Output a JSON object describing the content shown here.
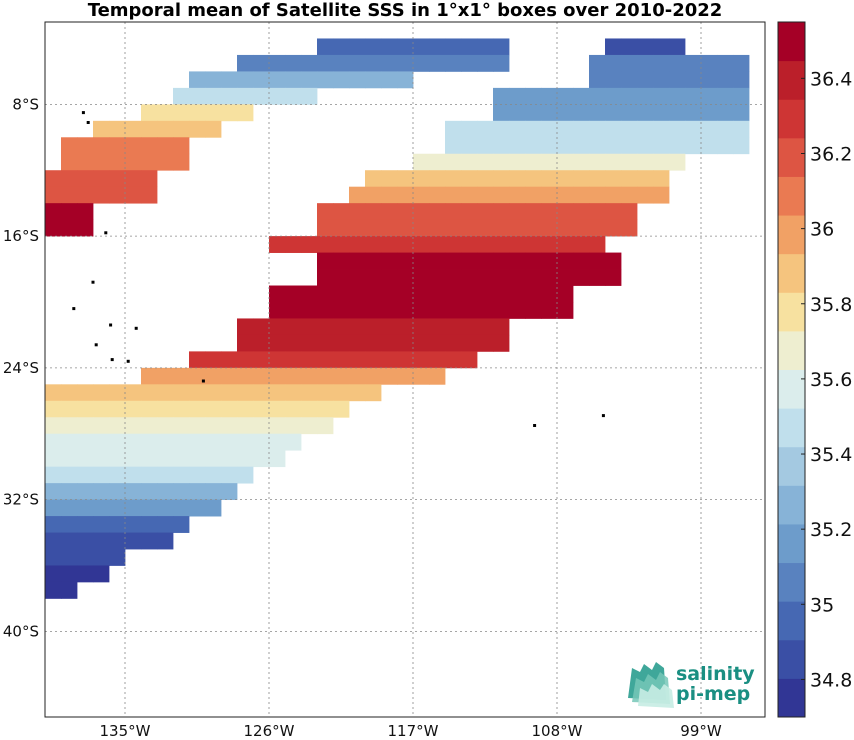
{
  "map": {
    "title": "Temporal mean of Satellite SSS in 1°x1° boxes over 2010-2022",
    "lat_labels": [
      {
        "label": "8°S",
        "value": -8
      },
      {
        "label": "16°S",
        "value": -16
      },
      {
        "label": "24°S",
        "value": -24
      },
      {
        "label": "32°S",
        "value": -32
      },
      {
        "label": "40°S",
        "value": -40
      }
    ],
    "lon_labels": [
      {
        "label": "135°W",
        "value": -135
      },
      {
        "label": "126°W",
        "value": -126
      },
      {
        "label": "117°W",
        "value": -117
      },
      {
        "label": "108°W",
        "value": -108
      },
      {
        "label": "99°W",
        "value": -99
      }
    ],
    "extent": {
      "lon_min": -140,
      "lon_max": -95,
      "lat_min": -45.2,
      "lat_max": -3.0
    },
    "grid": true
  },
  "colorbar": {
    "min": 34.7,
    "max": 36.55,
    "ticks": [
      "34.8",
      "35",
      "35.2",
      "35.4",
      "35.6",
      "35.8",
      "36",
      "36.2",
      "36.4"
    ],
    "colors": [
      "#313695",
      "#3a4fa5",
      "#4668b3",
      "#5982bf",
      "#6d9ccb",
      "#87b3d7",
      "#a4c9e1",
      "#c0dfec",
      "#dbedec",
      "#eeeed0",
      "#f7e1a0",
      "#f5c47e",
      "#f1a165",
      "#ea7a52",
      "#dd5543",
      "#ce3534",
      "#bb1f2a",
      "#a50026"
    ],
    "orientation": "vertical"
  },
  "logo": {
    "line1": "salinity",
    "line2": "pi-mep"
  },
  "chart_data": {
    "type": "heatmap",
    "title": "Temporal mean of Satellite SSS in 1°x1° boxes over 2010-2022",
    "x_axis": "longitude",
    "y_axis": "latitude",
    "cell_size_deg": 1,
    "vmin": 34.7,
    "vmax": 36.55,
    "bands": [
      {
        "lat_top": -4,
        "lat_bottom": -5,
        "lon_from": -123,
        "lon_to": -111,
        "value": 35.0
      },
      {
        "lat_top": -5,
        "lat_bottom": -6,
        "lon_from": -128,
        "lon_to": -111,
        "value": 35.1
      },
      {
        "lat_top": -6,
        "lat_bottom": -7,
        "lon_from": -131,
        "lon_to": -117,
        "value": 35.3
      },
      {
        "lat_top": -7,
        "lat_bottom": -8,
        "lon_from": -132,
        "lon_to": -123,
        "value": 35.45
      },
      {
        "lat_top": -8,
        "lat_bottom": -9,
        "lon_from": -134,
        "lon_to": -127,
        "value": 35.75
      },
      {
        "lat_top": -9,
        "lat_bottom": -10,
        "lon_from": -137,
        "lon_to": -129,
        "value": 35.85
      },
      {
        "lat_top": -10,
        "lat_bottom": -12,
        "lon_from": -139,
        "lon_to": -131,
        "value": 36.05
      },
      {
        "lat_top": -12,
        "lat_bottom": -14,
        "lon_from": -140,
        "lon_to": -133,
        "value": 36.2
      },
      {
        "lat_top": -14,
        "lat_bottom": -16,
        "lon_from": -140,
        "lon_to": -137,
        "value": 36.45
      },
      {
        "lat_top": -4,
        "lat_bottom": -5,
        "lon_from": -105,
        "lon_to": -100,
        "value": 34.9
      },
      {
        "lat_top": -5,
        "lat_bottom": -7,
        "lon_from": -106,
        "lon_to": -96,
        "value": 35.1
      },
      {
        "lat_top": -7,
        "lat_bottom": -9,
        "lon_from": -112,
        "lon_to": -96,
        "value": 35.2
      },
      {
        "lat_top": -9,
        "lat_bottom": -11,
        "lon_from": -115,
        "lon_to": -96,
        "value": 35.45
      },
      {
        "lat_top": -11,
        "lat_bottom": -12,
        "lon_from": -117,
        "lon_to": -100,
        "value": 35.7
      },
      {
        "lat_top": -12,
        "lat_bottom": -13,
        "lon_from": -120,
        "lon_to": -101,
        "value": 35.85
      },
      {
        "lat_top": -13,
        "lat_bottom": -14,
        "lon_from": -121,
        "lon_to": -101,
        "value": 36.0
      },
      {
        "lat_top": -14,
        "lat_bottom": -16,
        "lon_from": -123,
        "lon_to": -103,
        "value": 36.2
      },
      {
        "lat_top": -16,
        "lat_bottom": -17,
        "lon_from": -126,
        "lon_to": -105,
        "value": 36.3
      },
      {
        "lat_top": -17,
        "lat_bottom": -19,
        "lon_from": -123,
        "lon_to": -104,
        "value": 36.45
      },
      {
        "lat_top": -19,
        "lat_bottom": -21,
        "lon_from": -126,
        "lon_to": -107,
        "value": 36.5
      },
      {
        "lat_top": -21,
        "lat_bottom": -23,
        "lon_from": -128,
        "lon_to": -111,
        "value": 36.4
      },
      {
        "lat_top": -23,
        "lat_bottom": -24,
        "lon_from": -131,
        "lon_to": -113,
        "value": 36.3
      },
      {
        "lat_top": -24,
        "lat_bottom": -25,
        "lon_from": -134,
        "lon_to": -115,
        "value": 36.0
      },
      {
        "lat_top": -25,
        "lat_bottom": -26,
        "lon_from": -140,
        "lon_to": -119,
        "value": 35.9
      },
      {
        "lat_top": -26,
        "lat_bottom": -27,
        "lon_from": -140,
        "lon_to": -121,
        "value": 35.8
      },
      {
        "lat_top": -27,
        "lat_bottom": -28,
        "lon_from": -140,
        "lon_to": -122,
        "value": 35.7
      },
      {
        "lat_top": -28,
        "lat_bottom": -29,
        "lon_from": -140,
        "lon_to": -124,
        "value": 35.6
      },
      {
        "lat_top": -29,
        "lat_bottom": -30,
        "lon_from": -140,
        "lon_to": -125,
        "value": 35.55
      },
      {
        "lat_top": -30,
        "lat_bottom": -31,
        "lon_from": -140,
        "lon_to": -127,
        "value": 35.45
      },
      {
        "lat_top": -31,
        "lat_bottom": -32,
        "lon_from": -140,
        "lon_to": -128,
        "value": 35.3
      },
      {
        "lat_top": -32,
        "lat_bottom": -33,
        "lon_from": -140,
        "lon_to": -129,
        "value": 35.15
      },
      {
        "lat_top": -33,
        "lat_bottom": -34,
        "lon_from": -140,
        "lon_to": -131,
        "value": 35.0
      },
      {
        "lat_top": -34,
        "lat_bottom": -35,
        "lon_from": -140,
        "lon_to": -132,
        "value": 34.9
      },
      {
        "lat_top": -35,
        "lat_bottom": -36,
        "lon_from": -140,
        "lon_to": -135,
        "value": 34.85
      },
      {
        "lat_top": -36,
        "lat_bottom": -37,
        "lon_from": -140,
        "lon_to": -136,
        "value": 34.8
      },
      {
        "lat_top": -37,
        "lat_bottom": -38,
        "lon_from": -140,
        "lon_to": -138,
        "value": 34.75
      }
    ]
  }
}
